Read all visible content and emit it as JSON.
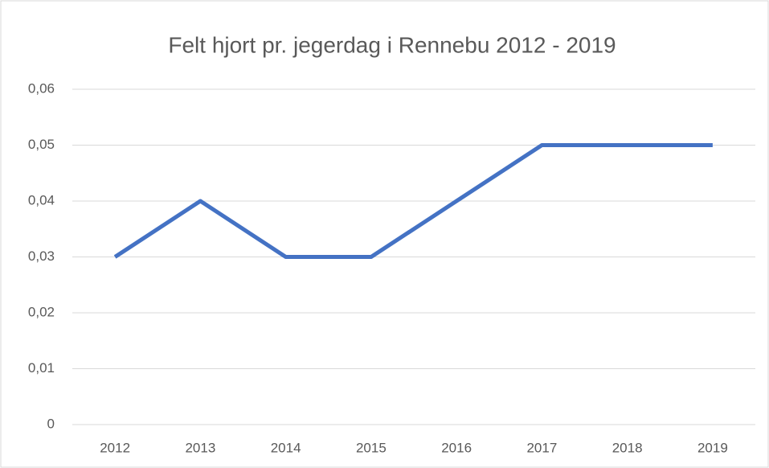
{
  "chart_data": {
    "type": "line",
    "title": "Felt hjort pr. jegerdag i Rennebu  2012 - 2019",
    "categories": [
      "2012",
      "2013",
      "2014",
      "2015",
      "2016",
      "2017",
      "2018",
      "2019"
    ],
    "values": [
      0.03,
      0.04,
      0.03,
      0.03,
      0.04,
      0.05,
      0.05,
      0.05
    ],
    "color": "#4472c4",
    "ylim": [
      0,
      0.06
    ],
    "yticks": [
      0,
      {
        "value": 0.01,
        "label": "0,01"
      },
      {
        "value": 0.02,
        "label": "0,02"
      },
      {
        "value": 0.03,
        "label": "0,03"
      },
      {
        "value": 0.04,
        "label": "0,04"
      },
      {
        "value": 0.05,
        "label": "0,05"
      },
      {
        "value": 0.06,
        "label": "0,06"
      }
    ],
    "grid": true
  }
}
